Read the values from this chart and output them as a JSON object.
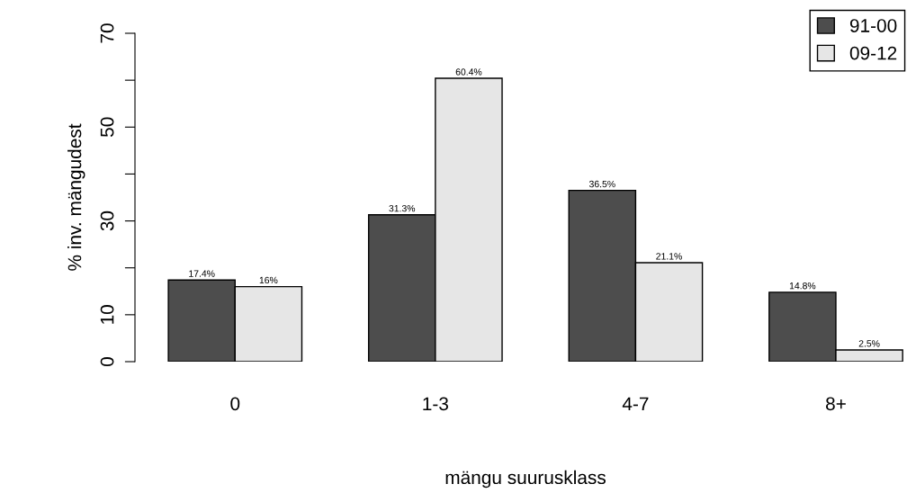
{
  "chart_data": {
    "type": "bar",
    "xlabel": "mängu suurusklass",
    "ylabel": "% inv. mängudest",
    "categories": [
      "0",
      "1-3",
      "4-7",
      "8+"
    ],
    "series": [
      {
        "name": "91-00",
        "color": "#4d4d4d",
        "values": [
          17.4,
          31.3,
          36.5,
          14.8
        ],
        "value_labels": [
          "17.4%",
          "31.3%",
          "36.5%",
          "14.8%"
        ]
      },
      {
        "name": "09-12",
        "color": "#e6e6e6",
        "values": [
          16,
          60.4,
          21.1,
          2.5
        ],
        "value_labels": [
          "16%",
          "60.4%",
          "21.1%",
          "2.5%"
        ]
      }
    ],
    "ylim": [
      0,
      70
    ],
    "yticks": [
      0,
      10,
      {
        "value": 20,
        "label": null
      },
      30,
      {
        "value": 40,
        "label": null
      },
      50,
      {
        "value": 60,
        "label": null
      },
      70
    ],
    "grid": false,
    "legend": "top right"
  }
}
